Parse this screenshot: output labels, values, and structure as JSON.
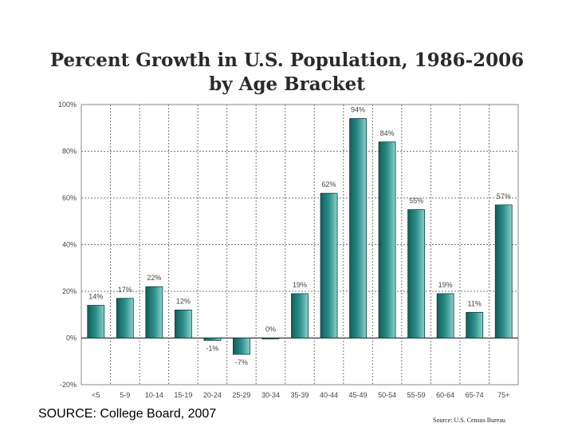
{
  "chart_data": {
    "type": "bar",
    "title": "Percent Growth in U.S. Population, 1986-2006",
    "subtitle": "by Age Bracket",
    "xlabel": "",
    "ylabel": "",
    "ylim": [
      -20,
      100
    ],
    "yticks": [
      100,
      80,
      60,
      40,
      20,
      0,
      -20
    ],
    "ytick_labels": [
      "100%",
      "80%",
      "60%",
      "40%",
      "20%",
      "0%",
      "-20%"
    ],
    "categories": [
      "<5",
      "5-9",
      "10-14",
      "15-19",
      "20-24",
      "25-29",
      "30-34",
      "35-39",
      "40-44",
      "45-49",
      "50-54",
      "55-59",
      "60-64",
      "65-74",
      "75+"
    ],
    "values": [
      14,
      17,
      22,
      12,
      -1,
      -7,
      0,
      19,
      62,
      94,
      84,
      55,
      19,
      11,
      57
    ],
    "data_labels": [
      "14%",
      "17%",
      "22%",
      "12%",
      "-1%",
      "-7%",
      "0%",
      "19%",
      "62%",
      "94%",
      "84%",
      "55%",
      "19%",
      "11%",
      "57%"
    ],
    "grid": true,
    "bar_color": "#1e7f7b",
    "chart_source": "Source: U.S. Census Bureau"
  },
  "footer": {
    "source": "SOURCE: College Board, 2007"
  }
}
